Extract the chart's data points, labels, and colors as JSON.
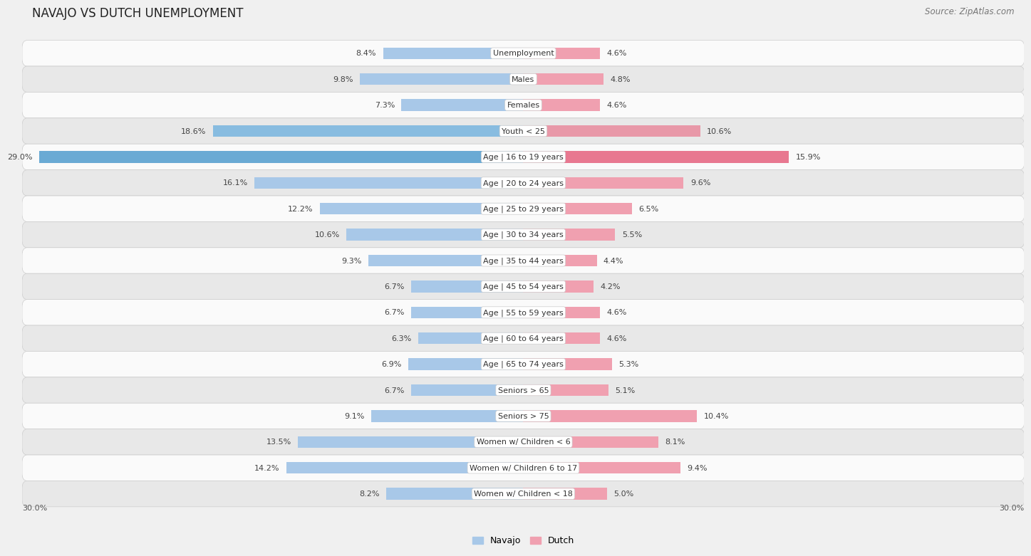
{
  "title": "NAVAJO VS DUTCH UNEMPLOYMENT",
  "source": "Source: ZipAtlas.com",
  "categories": [
    "Unemployment",
    "Males",
    "Females",
    "Youth < 25",
    "Age | 16 to 19 years",
    "Age | 20 to 24 years",
    "Age | 25 to 29 years",
    "Age | 30 to 34 years",
    "Age | 35 to 44 years",
    "Age | 45 to 54 years",
    "Age | 55 to 59 years",
    "Age | 60 to 64 years",
    "Age | 65 to 74 years",
    "Seniors > 65",
    "Seniors > 75",
    "Women w/ Children < 6",
    "Women w/ Children 6 to 17",
    "Women w/ Children < 18"
  ],
  "navajo": [
    8.4,
    9.8,
    7.3,
    18.6,
    29.0,
    16.1,
    12.2,
    10.6,
    9.3,
    6.7,
    6.7,
    6.3,
    6.9,
    6.7,
    9.1,
    13.5,
    14.2,
    8.2
  ],
  "dutch": [
    4.6,
    4.8,
    4.6,
    10.6,
    15.9,
    9.6,
    6.5,
    5.5,
    4.4,
    4.2,
    4.6,
    4.6,
    5.3,
    5.1,
    10.4,
    8.1,
    9.4,
    5.0
  ],
  "navajo_color": "#a8c8e8",
  "dutch_color": "#f0a0b0",
  "navajo_highlight": "#6aaad4",
  "dutch_highlight": "#e87890",
  "bg_color": "#f0f0f0",
  "row_bg_light": "#fafafa",
  "row_bg_dark": "#e8e8e8",
  "axis_max": 30.0,
  "legend_navajo": "Navajo",
  "legend_dutch": "Dutch",
  "title_fontsize": 12,
  "source_fontsize": 8.5,
  "label_fontsize": 8,
  "category_fontsize": 8
}
